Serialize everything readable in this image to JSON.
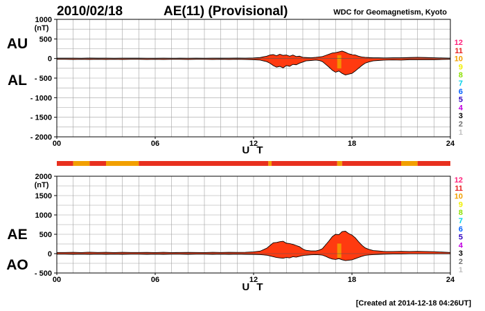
{
  "header": {
    "date": "2010/02/18",
    "title": "AE(11) (Provisional)",
    "source": "WDC for Geomagnetism, Kyoto"
  },
  "footer": {
    "created": "[Created at 2014-12-18 04:26UT]"
  },
  "legend": {
    "levels": [
      {
        "label": "12",
        "color": "#ff1f7a"
      },
      {
        "label": "11",
        "color": "#e8201f"
      },
      {
        "label": "10",
        "color": "#f2a000"
      },
      {
        "label": "9",
        "color": "#f0f000"
      },
      {
        "label": "8",
        "color": "#8ce000"
      },
      {
        "label": "7",
        "color": "#00d0e8"
      },
      {
        "label": "6",
        "color": "#0060ff"
      },
      {
        "label": "5",
        "color": "#3000c0"
      },
      {
        "label": "4",
        "color": "#c000e0"
      },
      {
        "label": "3",
        "color": "#000000"
      },
      {
        "label": "2",
        "color": "#707070"
      },
      {
        "label": "1",
        "color": "#c0c0c0"
      }
    ]
  },
  "colors": {
    "fill": "#ff3a10",
    "outline": "#000000",
    "orange": "#f2a000",
    "grid": "#a0a0a0"
  },
  "station_bar": {
    "base_color": "#e8301f",
    "segments": [
      {
        "start": 0.0,
        "end": 1.0,
        "color": "#e8301f"
      },
      {
        "start": 1.0,
        "end": 2.0,
        "color": "#f2a000"
      },
      {
        "start": 2.0,
        "end": 3.0,
        "color": "#e8301f"
      },
      {
        "start": 3.0,
        "end": 5.0,
        "color": "#f2a000"
      },
      {
        "start": 5.0,
        "end": 12.9,
        "color": "#e8301f"
      },
      {
        "start": 12.9,
        "end": 13.1,
        "color": "#f2a000"
      },
      {
        "start": 13.1,
        "end": 17.1,
        "color": "#e8301f"
      },
      {
        "start": 17.1,
        "end": 17.4,
        "color": "#f2a000"
      },
      {
        "start": 17.4,
        "end": 21.0,
        "color": "#e8301f"
      },
      {
        "start": 21.0,
        "end": 22.0,
        "color": "#f2a000"
      },
      {
        "start": 22.0,
        "end": 24.0,
        "color": "#e8301f"
      }
    ]
  },
  "chart_data": [
    {
      "type": "area",
      "panel": "AU/AL",
      "xlabel": "U T",
      "ylabel": "(nT)",
      "series_labels": [
        "AU",
        "AL"
      ],
      "xlim": [
        0,
        24
      ],
      "ylim": [
        -2000,
        1000
      ],
      "xticks": [
        "00",
        "06",
        "12",
        "18",
        "24"
      ],
      "xtick_values": [
        0,
        6,
        12,
        18,
        24
      ],
      "yticks": [
        "1000",
        "500",
        "0",
        "- 500",
        "- 1000",
        "- 1500",
        "- 2000"
      ],
      "ytick_values": [
        1000,
        500,
        0,
        -500,
        -1000,
        -1500,
        -2000
      ],
      "grid": true,
      "x": [
        0,
        0.5,
        1,
        1.5,
        2,
        2.5,
        3,
        3.5,
        4,
        4.5,
        5,
        5.5,
        6,
        6.5,
        7,
        7.5,
        8,
        8.5,
        9,
        9.5,
        10,
        10.5,
        11,
        11.5,
        12,
        12.4,
        12.8,
        13.0,
        13.2,
        13.4,
        13.6,
        13.8,
        14.0,
        14.2,
        14.4,
        14.6,
        14.8,
        15.0,
        15.2,
        15.5,
        15.8,
        16.0,
        16.2,
        16.4,
        16.6,
        16.8,
        17.0,
        17.2,
        17.4,
        17.6,
        17.8,
        18.0,
        18.2,
        18.4,
        18.6,
        18.8,
        19.0,
        19.3,
        19.6,
        20,
        20.5,
        21,
        21.5,
        22,
        22.5,
        23,
        23.5,
        24
      ],
      "upper": [
        10,
        10,
        10,
        8,
        12,
        10,
        10,
        8,
        10,
        10,
        10,
        8,
        8,
        10,
        8,
        10,
        8,
        10,
        8,
        10,
        10,
        10,
        12,
        10,
        15,
        25,
        60,
        90,
        100,
        70,
        110,
        80,
        90,
        60,
        90,
        50,
        60,
        30,
        25,
        20,
        30,
        40,
        50,
        80,
        110,
        140,
        150,
        170,
        190,
        160,
        120,
        100,
        90,
        60,
        40,
        30,
        25,
        20,
        20,
        15,
        20,
        20,
        25,
        30,
        25,
        20,
        15,
        10
      ],
      "lower": [
        -20,
        -20,
        -25,
        -20,
        -25,
        -20,
        -25,
        -20,
        -25,
        -20,
        -20,
        -25,
        -20,
        -25,
        -20,
        -20,
        -25,
        -20,
        -20,
        -25,
        -20,
        -25,
        -20,
        -25,
        -30,
        -40,
        -80,
        -120,
        -180,
        -220,
        -200,
        -240,
        -180,
        -200,
        -150,
        -160,
        -120,
        -90,
        -60,
        -50,
        -40,
        -50,
        -80,
        -150,
        -220,
        -300,
        -350,
        -320,
        -380,
        -420,
        -400,
        -380,
        -320,
        -250,
        -180,
        -120,
        -90,
        -60,
        -50,
        -40,
        -35,
        -40,
        -30,
        -30,
        -30,
        -30,
        -25,
        -20
      ]
    },
    {
      "type": "area",
      "panel": "AE/AO",
      "xlabel": "U T",
      "ylabel": "(nT)",
      "series_labels": [
        "AE",
        "AO"
      ],
      "xlim": [
        0,
        24
      ],
      "ylim": [
        -500,
        2000
      ],
      "xticks": [
        "00",
        "06",
        "12",
        "18",
        "24"
      ],
      "xtick_values": [
        0,
        6,
        12,
        18,
        24
      ],
      "yticks": [
        "2000",
        "1500",
        "1000",
        "500",
        "0",
        "- 500"
      ],
      "ytick_values": [
        2000,
        1500,
        1000,
        500,
        0,
        -500
      ],
      "grid": true,
      "x": [
        0,
        0.5,
        1,
        1.5,
        2,
        2.5,
        3,
        3.5,
        4,
        4.5,
        5,
        5.5,
        6,
        6.5,
        7,
        7.5,
        8,
        8.5,
        9,
        9.5,
        10,
        10.5,
        11,
        11.5,
        12,
        12.4,
        12.8,
        13.0,
        13.2,
        13.4,
        13.6,
        13.8,
        14.0,
        14.2,
        14.4,
        14.6,
        14.8,
        15.0,
        15.2,
        15.5,
        15.8,
        16.0,
        16.2,
        16.4,
        16.6,
        16.8,
        17.0,
        17.2,
        17.4,
        17.6,
        17.8,
        18.0,
        18.2,
        18.4,
        18.6,
        18.8,
        19.0,
        19.3,
        19.6,
        20,
        20.5,
        21,
        21.5,
        22,
        22.5,
        23,
        23.5,
        24
      ],
      "upper": [
        30,
        30,
        35,
        28,
        37,
        30,
        35,
        28,
        35,
        30,
        30,
        33,
        28,
        35,
        28,
        30,
        33,
        30,
        28,
        35,
        30,
        35,
        32,
        35,
        45,
        65,
        140,
        210,
        280,
        290,
        310,
        320,
        270,
        260,
        240,
        210,
        180,
        120,
        85,
        70,
        70,
        90,
        130,
        230,
        330,
        440,
        500,
        490,
        570,
        580,
        520,
        480,
        410,
        310,
        220,
        150,
        115,
        80,
        70,
        55,
        55,
        60,
        55,
        60,
        55,
        50,
        40,
        30
      ],
      "lower": [
        -15,
        -15,
        -18,
        -15,
        -18,
        -15,
        -18,
        -15,
        -18,
        -15,
        -15,
        -18,
        -15,
        -18,
        -15,
        -15,
        -18,
        -15,
        -15,
        -18,
        -15,
        -18,
        -15,
        -18,
        -20,
        -25,
        -40,
        -60,
        -80,
        -100,
        -110,
        -120,
        -100,
        -110,
        -80,
        -90,
        -70,
        -50,
        -40,
        -30,
        -25,
        -30,
        -40,
        -70,
        -110,
        -140,
        -150,
        -130,
        -160,
        -180,
        -170,
        -160,
        -130,
        -100,
        -70,
        -45,
        -35,
        -25,
        -20,
        -15,
        -10,
        -10,
        -5,
        -5,
        -5,
        -5,
        -5,
        -5
      ]
    }
  ]
}
